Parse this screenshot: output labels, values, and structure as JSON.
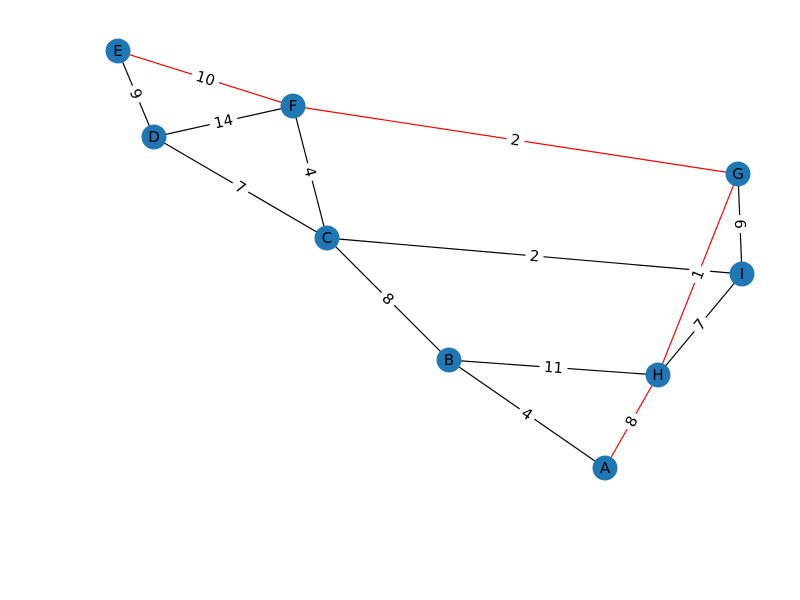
{
  "graph": {
    "node_color": "#1f77b4",
    "edge_color_default": "#000000",
    "edge_color_highlight": "#ff0000",
    "nodes": [
      "A",
      "B",
      "C",
      "D",
      "E",
      "F",
      "G",
      "H",
      "I"
    ],
    "edges": [
      {
        "source": "E",
        "target": "F",
        "weight": "10",
        "highlighted": true
      },
      {
        "source": "E",
        "target": "D",
        "weight": "9",
        "highlighted": false
      },
      {
        "source": "D",
        "target": "F",
        "weight": "14",
        "highlighted": false
      },
      {
        "source": "D",
        "target": "C",
        "weight": "7",
        "highlighted": false
      },
      {
        "source": "F",
        "target": "C",
        "weight": "4",
        "highlighted": false
      },
      {
        "source": "F",
        "target": "G",
        "weight": "2",
        "highlighted": true
      },
      {
        "source": "C",
        "target": "I",
        "weight": "2",
        "highlighted": false
      },
      {
        "source": "C",
        "target": "B",
        "weight": "8",
        "highlighted": false
      },
      {
        "source": "G",
        "target": "I",
        "weight": "6",
        "highlighted": false
      },
      {
        "source": "G",
        "target": "H",
        "weight": "1",
        "highlighted": true
      },
      {
        "source": "I",
        "target": "H",
        "weight": "7",
        "highlighted": false
      },
      {
        "source": "B",
        "target": "H",
        "weight": "11",
        "highlighted": false
      },
      {
        "source": "B",
        "target": "A",
        "weight": "4",
        "highlighted": false
      },
      {
        "source": "H",
        "target": "A",
        "weight": "8",
        "highlighted": true
      }
    ]
  }
}
